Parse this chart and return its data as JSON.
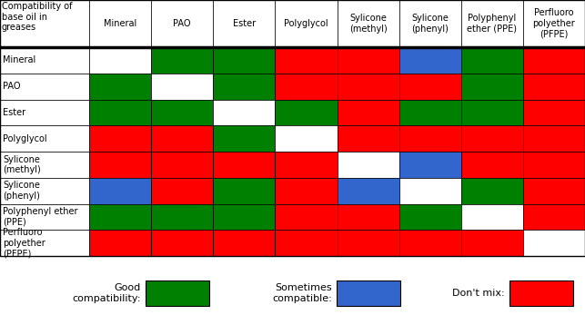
{
  "title": "Compatibility of\nbase oil in\ngreases",
  "col_labels": [
    "Mineral",
    "PAO",
    "Ester",
    "Polyglycol",
    "Sylicone\n(methyl)",
    "Sylicone\n(phenyl)",
    "Polyphenyl\nether (PPE)",
    "Perfluoro\npolyether\n(PFPE)"
  ],
  "row_labels": [
    "Mineral",
    "PAO",
    "Ester",
    "Polyglycol",
    "Sylicone\n(methyl)",
    "Sylicone\n(phenyl)",
    "Polyphenyl ether\n(PPE)",
    "Perfluoro\npolyether\n(PFPE)"
  ],
  "matrix": [
    [
      "W",
      "G",
      "G",
      "R",
      "R",
      "B",
      "G",
      "R"
    ],
    [
      "G",
      "W",
      "G",
      "R",
      "R",
      "R",
      "G",
      "R"
    ],
    [
      "G",
      "G",
      "W",
      "G",
      "R",
      "G",
      "G",
      "R"
    ],
    [
      "R",
      "R",
      "G",
      "W",
      "R",
      "R",
      "R",
      "R"
    ],
    [
      "R",
      "R",
      "R",
      "R",
      "W",
      "B",
      "R",
      "R"
    ],
    [
      "B",
      "R",
      "G",
      "R",
      "B",
      "W",
      "G",
      "R"
    ],
    [
      "G",
      "G",
      "G",
      "R",
      "R",
      "G",
      "W",
      "R"
    ],
    [
      "R",
      "R",
      "R",
      "R",
      "R",
      "R",
      "R",
      "W"
    ]
  ],
  "color_map": {
    "W": "#ffffff",
    "G": "#008000",
    "R": "#ff0000",
    "B": "#3366cc"
  },
  "legend_items": [
    {
      "label": "Good\ncompatibility:",
      "color": "#008000"
    },
    {
      "label": "Sometimes\ncompatible:",
      "color": "#3366cc"
    },
    {
      "label": "Don't mix:",
      "color": "#ff0000"
    }
  ],
  "border_color": "#000000",
  "fig_bg": "#ffffff",
  "cell_font_size": 7,
  "header_font_size": 7,
  "title_font_size": 7,
  "legend_font_size": 8
}
